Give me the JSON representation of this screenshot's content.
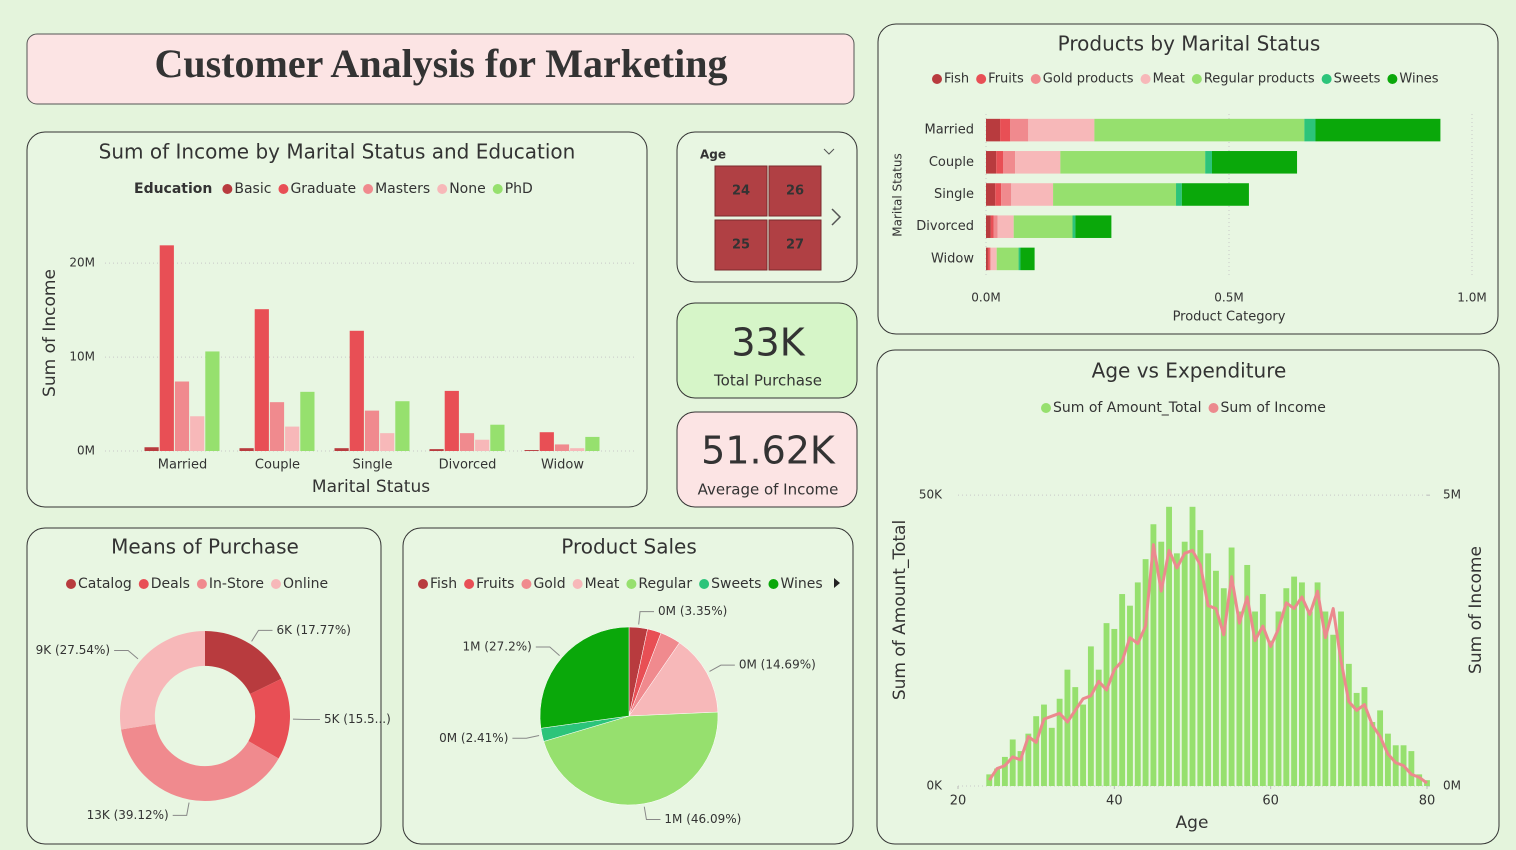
{
  "title": "Customer Analysis for Marketing",
  "slicer": {
    "title": "Age",
    "items": [
      "24",
      "26",
      "25",
      "27"
    ]
  },
  "cards": [
    {
      "value": "33K",
      "label": "Total Purchase"
    },
    {
      "value": "51.62K",
      "label": "Average of Income"
    }
  ],
  "chart_data": [
    {
      "type": "bar",
      "title": "Sum of Income by Marital Status and Education",
      "legend_title": "Education",
      "x_label": "Marital Status",
      "y_label": "Sum of Income",
      "categories": [
        "Married",
        "Couple",
        "Single",
        "Divorced",
        "Widow"
      ],
      "series": [
        {
          "name": "Basic",
          "color": "#b83b3e",
          "values": [
            400000,
            300000,
            300000,
            200000,
            100000
          ]
        },
        {
          "name": "Graduate",
          "color": "#e84f55",
          "values": [
            21900000,
            15100000,
            12800000,
            6400000,
            2000000
          ]
        },
        {
          "name": "Masters",
          "color": "#f08a8e",
          "values": [
            7400000,
            5200000,
            4300000,
            1900000,
            700000
          ]
        },
        {
          "name": "None",
          "color": "#f7b8b9",
          "values": [
            3700000,
            2600000,
            1900000,
            1200000,
            300000
          ]
        },
        {
          "name": "PhD",
          "color": "#96e06e",
          "values": [
            10600000,
            6300000,
            5300000,
            2800000,
            1500000
          ]
        }
      ],
      "ylim": [
        0,
        23000000
      ],
      "yticks": [
        {
          "value": 0,
          "label": "0M"
        },
        {
          "value": 10000000,
          "label": "10M"
        },
        {
          "value": 20000000,
          "label": "20M"
        }
      ],
      "grid": true
    },
    {
      "type": "bar",
      "horizontal": true,
      "stacked": true,
      "title": "Products by Marital Status",
      "x_label": "Product Category",
      "y_label": "Marital Status",
      "categories": [
        "Married",
        "Couple",
        "Single",
        "Divorced",
        "Widow"
      ],
      "series": [
        {
          "name": "Fish",
          "color": "#b83b3e",
          "values": [
            29000,
            21000,
            19000,
            10000,
            4000
          ]
        },
        {
          "name": "Fruits",
          "color": "#e84f55",
          "values": [
            21000,
            14000,
            12000,
            6000,
            4000
          ]
        },
        {
          "name": "Gold products",
          "color": "#f08a8e",
          "values": [
            37000,
            25000,
            21000,
            8000,
            2000
          ]
        },
        {
          "name": "Meat",
          "color": "#f7b8b9",
          "values": [
            136000,
            93000,
            86000,
            33000,
            12000
          ]
        },
        {
          "name": "Regular products",
          "color": "#96e06e",
          "values": [
            432000,
            298000,
            253000,
            121000,
            45000
          ]
        },
        {
          "name": "Sweets",
          "color": "#2cc47a",
          "values": [
            23000,
            14000,
            12000,
            6000,
            4000
          ]
        },
        {
          "name": "Wines",
          "color": "#0aa80a",
          "values": [
            257000,
            175000,
            138000,
            74000,
            29000
          ]
        }
      ],
      "xlim": [
        0,
        1000000
      ],
      "xticks": [
        {
          "value": 0,
          "label": "0.0M"
        },
        {
          "value": 500000,
          "label": "0.5M"
        },
        {
          "value": 1000000,
          "label": "1.0M"
        }
      ],
      "grid": true
    },
    {
      "type": "pie",
      "donut": true,
      "title": "Means of Purchase",
      "categories": [
        "Catalog",
        "Deals",
        "In-Store",
        "Online"
      ],
      "colors": [
        "#b83b3e",
        "#e84f55",
        "#f08a8e",
        "#f7b8b9"
      ],
      "values": [
        5864,
        5138,
        12910,
        9088
      ],
      "value_labels": [
        "6K (17.77%)",
        "5K (15.5...)",
        "13K (39.12%)",
        "9K (27.54%)"
      ]
    },
    {
      "type": "pie",
      "title": "Product Sales",
      "categories": [
        "Fish",
        "Fruits",
        "Gold",
        "Meat",
        "Regular",
        "Sweets",
        "Wines"
      ],
      "colors": [
        "#b83b3e",
        "#e84f55",
        "#f08a8e",
        "#f7b8b9",
        "#96e06e",
        "#2cc47a",
        "#0aa80a"
      ],
      "values": [
        82745,
        61750,
        92872,
        362843,
        1138423,
        59527,
        671840
      ],
      "value_labels": [
        "0M (3.35%)",
        null,
        null,
        "0M (14.69%)",
        "1M (46.09%)",
        "0M (2.41%)",
        "1M (27.2%)"
      ]
    },
    {
      "type": "combo",
      "title": "Age vs Expenditure",
      "x_label": "Age",
      "y_label": "Sum of Amount_Total",
      "y2_label": "Sum of Income",
      "x": [
        24,
        25,
        26,
        27,
        28,
        29,
        30,
        31,
        32,
        33,
        34,
        35,
        36,
        37,
        38,
        39,
        40,
        41,
        42,
        43,
        44,
        45,
        46,
        47,
        48,
        49,
        50,
        51,
        52,
        53,
        54,
        55,
        56,
        57,
        58,
        59,
        60,
        61,
        62,
        63,
        64,
        65,
        66,
        67,
        68,
        69,
        70,
        71,
        72,
        73,
        74,
        75,
        76,
        77,
        78,
        79,
        80
      ],
      "series": [
        {
          "name": "Sum of Amount_Total",
          "type": "bar",
          "color": "#96e06e",
          "values": [
            2000,
            3000,
            5000,
            8000,
            6000,
            9000,
            12000,
            14000,
            10000,
            15000,
            20000,
            17000,
            14000,
            24000,
            20000,
            28000,
            27000,
            33000,
            31000,
            35000,
            39000,
            45000,
            42000,
            48000,
            40000,
            42000,
            48000,
            44000,
            40000,
            37000,
            34000,
            41000,
            30000,
            38000,
            30000,
            33000,
            25000,
            30000,
            34000,
            36000,
            35000,
            30000,
            35000,
            30000,
            26000,
            30000,
            21000,
            16000,
            17000,
            11000,
            13000,
            9000,
            7000,
            7000,
            6000,
            2000,
            1000
          ]
        },
        {
          "name": "Sum of Income",
          "type": "line",
          "axis": "y2",
          "color": "#ec8a8e",
          "values": [
            100000,
            300000,
            350000,
            500000,
            450000,
            850000,
            750000,
            1150000,
            1200000,
            1250000,
            1100000,
            1300000,
            1500000,
            1550000,
            1800000,
            1650000,
            2000000,
            2150000,
            2550000,
            2450000,
            2750000,
            4150000,
            3350000,
            4050000,
            3750000,
            4000000,
            4050000,
            3800000,
            3100000,
            3050000,
            2600000,
            3600000,
            2800000,
            3250000,
            2500000,
            2750000,
            2400000,
            2700000,
            3150000,
            3050000,
            3250000,
            2950000,
            3350000,
            2550000,
            3050000,
            2150000,
            1450000,
            1300000,
            1400000,
            1050000,
            850000,
            550000,
            400000,
            350000,
            200000,
            150000,
            50000
          ]
        }
      ],
      "xlim": [
        20,
        80
      ],
      "xticks": [
        20,
        40,
        60,
        80
      ],
      "ylim": [
        0,
        60000
      ],
      "yticks": [
        {
          "value": 0,
          "label": "0K"
        },
        {
          "value": 50000,
          "label": "50K"
        }
      ],
      "y2lim": [
        0,
        6000000
      ],
      "y2ticks": [
        {
          "value": 0,
          "label": "0M"
        },
        {
          "value": 5000000,
          "label": "5M"
        }
      ],
      "grid": true
    }
  ]
}
